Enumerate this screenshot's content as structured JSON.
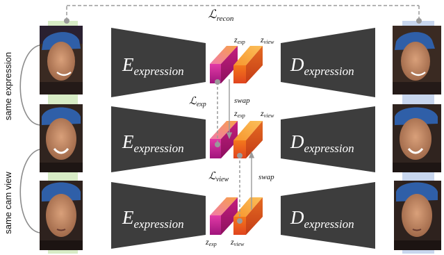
{
  "loss_labels": {
    "recon": {
      "symbol": "ℒ",
      "sub": "recon"
    },
    "exp": {
      "symbol": "ℒ",
      "sub": "exp"
    },
    "view": {
      "symbol": "ℒ",
      "sub": "view"
    }
  },
  "side_labels": {
    "same_expression": "same expression",
    "same_cam_view": "same cam view"
  },
  "encoder": {
    "letter": "E",
    "sub": "expression"
  },
  "decoder": {
    "letter": "D",
    "sub": "expression"
  },
  "code_labels": {
    "z": "z",
    "exp_sub": "exp",
    "view_sub": "view"
  },
  "swap_label": "swap",
  "colors": {
    "block": "#3d3d3d",
    "exp_code_front": "#c81e96",
    "exp_code_top": "#f27fb2",
    "view_code_front": "#f05a1e",
    "view_code_top": "#f7a13a",
    "input_strip": "#d8ecc6",
    "output_strip": "#c8d6ee",
    "dashed_line": "#9a9a9a"
  },
  "rows": [
    {
      "input_face": "face-photo-row-1",
      "output_face": "reconstructed-face-row-1"
    },
    {
      "input_face": "face-photo-row-2",
      "output_face": "reconstructed-face-row-2"
    },
    {
      "input_face": "face-photo-row-3",
      "output_face": "reconstructed-face-row-3"
    }
  ]
}
